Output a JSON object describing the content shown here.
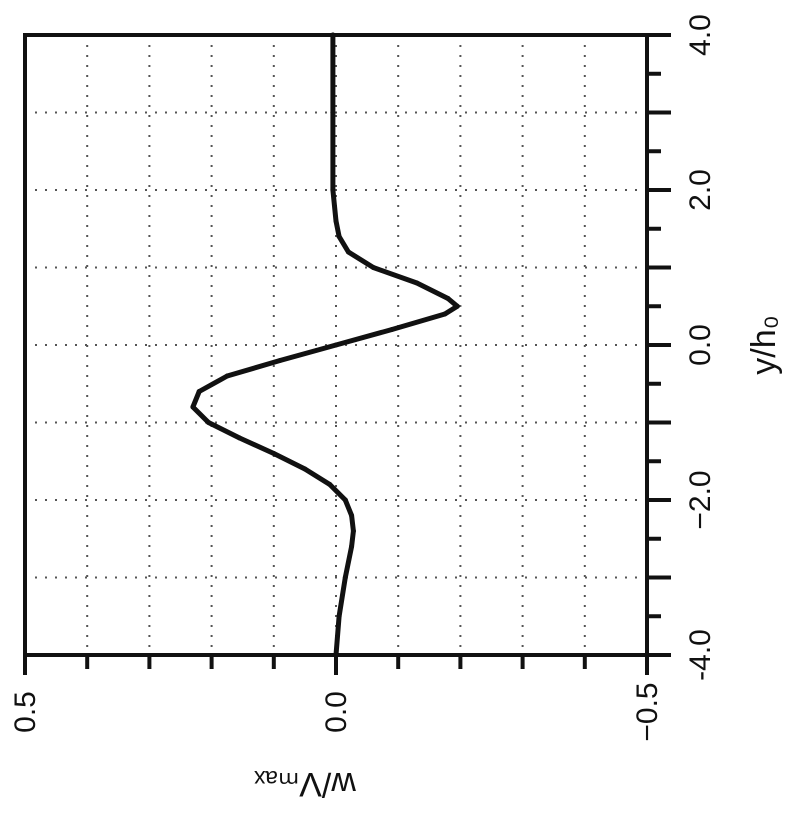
{
  "chart_data": {
    "type": "line",
    "title": "",
    "orientation": "rotated-90-ccw",
    "xlabel": "y/h₀",
    "ylabel": "w/Vₘₐₓ",
    "xlim": [
      -4.0,
      4.0
    ],
    "ylim": [
      -0.5,
      0.5
    ],
    "x_ticks": [
      -4.0,
      -2.0,
      0.0,
      2.0,
      4.0
    ],
    "x_tick_labels": [
      "-4.0",
      "−2.0",
      "0.0",
      "2.0",
      "4.0"
    ],
    "y_ticks": [
      0.5,
      0.0,
      -0.5
    ],
    "y_tick_labels": [
      "0.5",
      "0.0",
      "−0.5"
    ],
    "grid": true,
    "grid_style": "dotted",
    "series": [
      {
        "name": "",
        "color": "#111111",
        "x": [
          -4.0,
          -3.5,
          -3.0,
          -2.6,
          -2.4,
          -2.2,
          -2.0,
          -1.8,
          -1.6,
          -1.4,
          -1.2,
          -1.0,
          -0.8,
          -0.6,
          -0.4,
          -0.2,
          0.0,
          0.2,
          0.4,
          0.5,
          0.6,
          0.8,
          1.0,
          1.2,
          1.4,
          1.6,
          2.0,
          3.0,
          4.0
        ],
        "y": [
          0.0,
          -0.005,
          -0.015,
          -0.025,
          -0.028,
          -0.025,
          -0.015,
          0.01,
          0.05,
          0.1,
          0.155,
          0.205,
          0.23,
          0.22,
          0.175,
          0.09,
          0.0,
          -0.09,
          -0.175,
          -0.195,
          -0.18,
          -0.13,
          -0.06,
          -0.02,
          -0.005,
          0.0,
          0.005,
          0.005,
          0.005
        ]
      }
    ]
  }
}
